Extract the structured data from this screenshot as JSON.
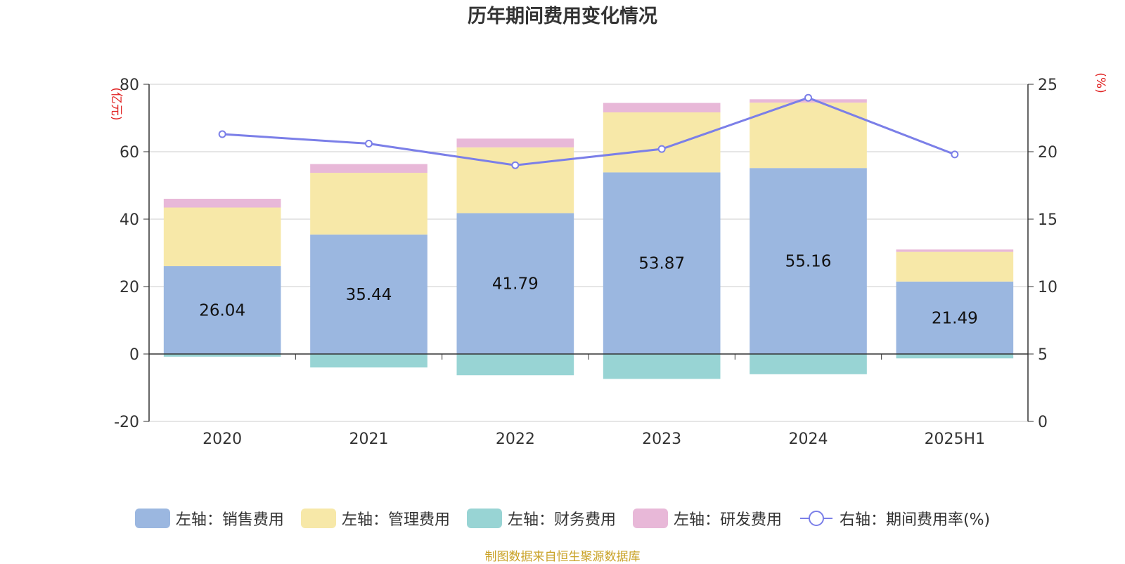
{
  "chart_data": {
    "type": "bar",
    "title": "历年期间费用变化情况",
    "categories": [
      "2020",
      "2021",
      "2022",
      "2023",
      "2024",
      "2025H1"
    ],
    "left_axis": {
      "unit_label": "(亿元)",
      "ylim": [
        -20,
        80
      ],
      "ticks": [
        -20,
        0,
        20,
        40,
        60,
        80
      ]
    },
    "right_axis": {
      "unit_label": "(%)",
      "ylim": [
        0,
        25
      ],
      "ticks": [
        0,
        5,
        10,
        15,
        20,
        25
      ]
    },
    "series": [
      {
        "name": "左轴：销售费用",
        "type": "bar",
        "color": "#9bb7e0",
        "values": [
          26.04,
          35.44,
          41.79,
          53.87,
          55.16,
          21.49
        ],
        "labels": [
          "26.04",
          "35.44",
          "41.79",
          "53.87",
          "55.16",
          "21.49"
        ]
      },
      {
        "name": "左轴：管理费用",
        "type": "bar",
        "color": "#f7e8a8",
        "values": [
          17.4,
          18.3,
          19.5,
          17.8,
          19.4,
          8.8
        ]
      },
      {
        "name": "左轴：财务费用",
        "type": "bar",
        "color": "#98d4d4",
        "values": [
          -0.8,
          -4.0,
          -6.3,
          -7.4,
          -6.0,
          -1.3
        ]
      },
      {
        "name": "左轴：研发费用",
        "type": "bar",
        "color": "#e8b8d8",
        "values": [
          2.6,
          2.6,
          2.6,
          2.8,
          1.0,
          0.7
        ]
      },
      {
        "name": "右轴：期间费用率(%)",
        "type": "line",
        "color": "#7b7fe8",
        "values": [
          21.3,
          20.6,
          19.0,
          20.2,
          24.0,
          19.8
        ]
      }
    ],
    "grid": true,
    "legend_position": "bottom",
    "source": "制图数据来自恒生聚源数据库"
  }
}
